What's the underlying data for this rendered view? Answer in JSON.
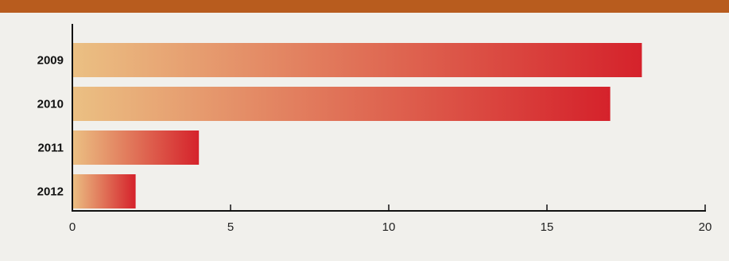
{
  "chart_data": {
    "type": "bar",
    "orientation": "horizontal",
    "title": "",
    "categories": [
      "2009",
      "2010",
      "2011",
      "2012"
    ],
    "values": [
      18,
      17,
      4,
      2
    ],
    "xlim": [
      0,
      20
    ],
    "xticks": [
      0,
      5,
      10,
      15,
      20
    ],
    "xlabel": "",
    "ylabel": "",
    "grid": false,
    "colors": {
      "title_bar": "#b85c1e",
      "bar_start": "#ebc083",
      "bar_end": "#d5222b",
      "background": "#f1f0ec",
      "axis": "#111111"
    }
  }
}
